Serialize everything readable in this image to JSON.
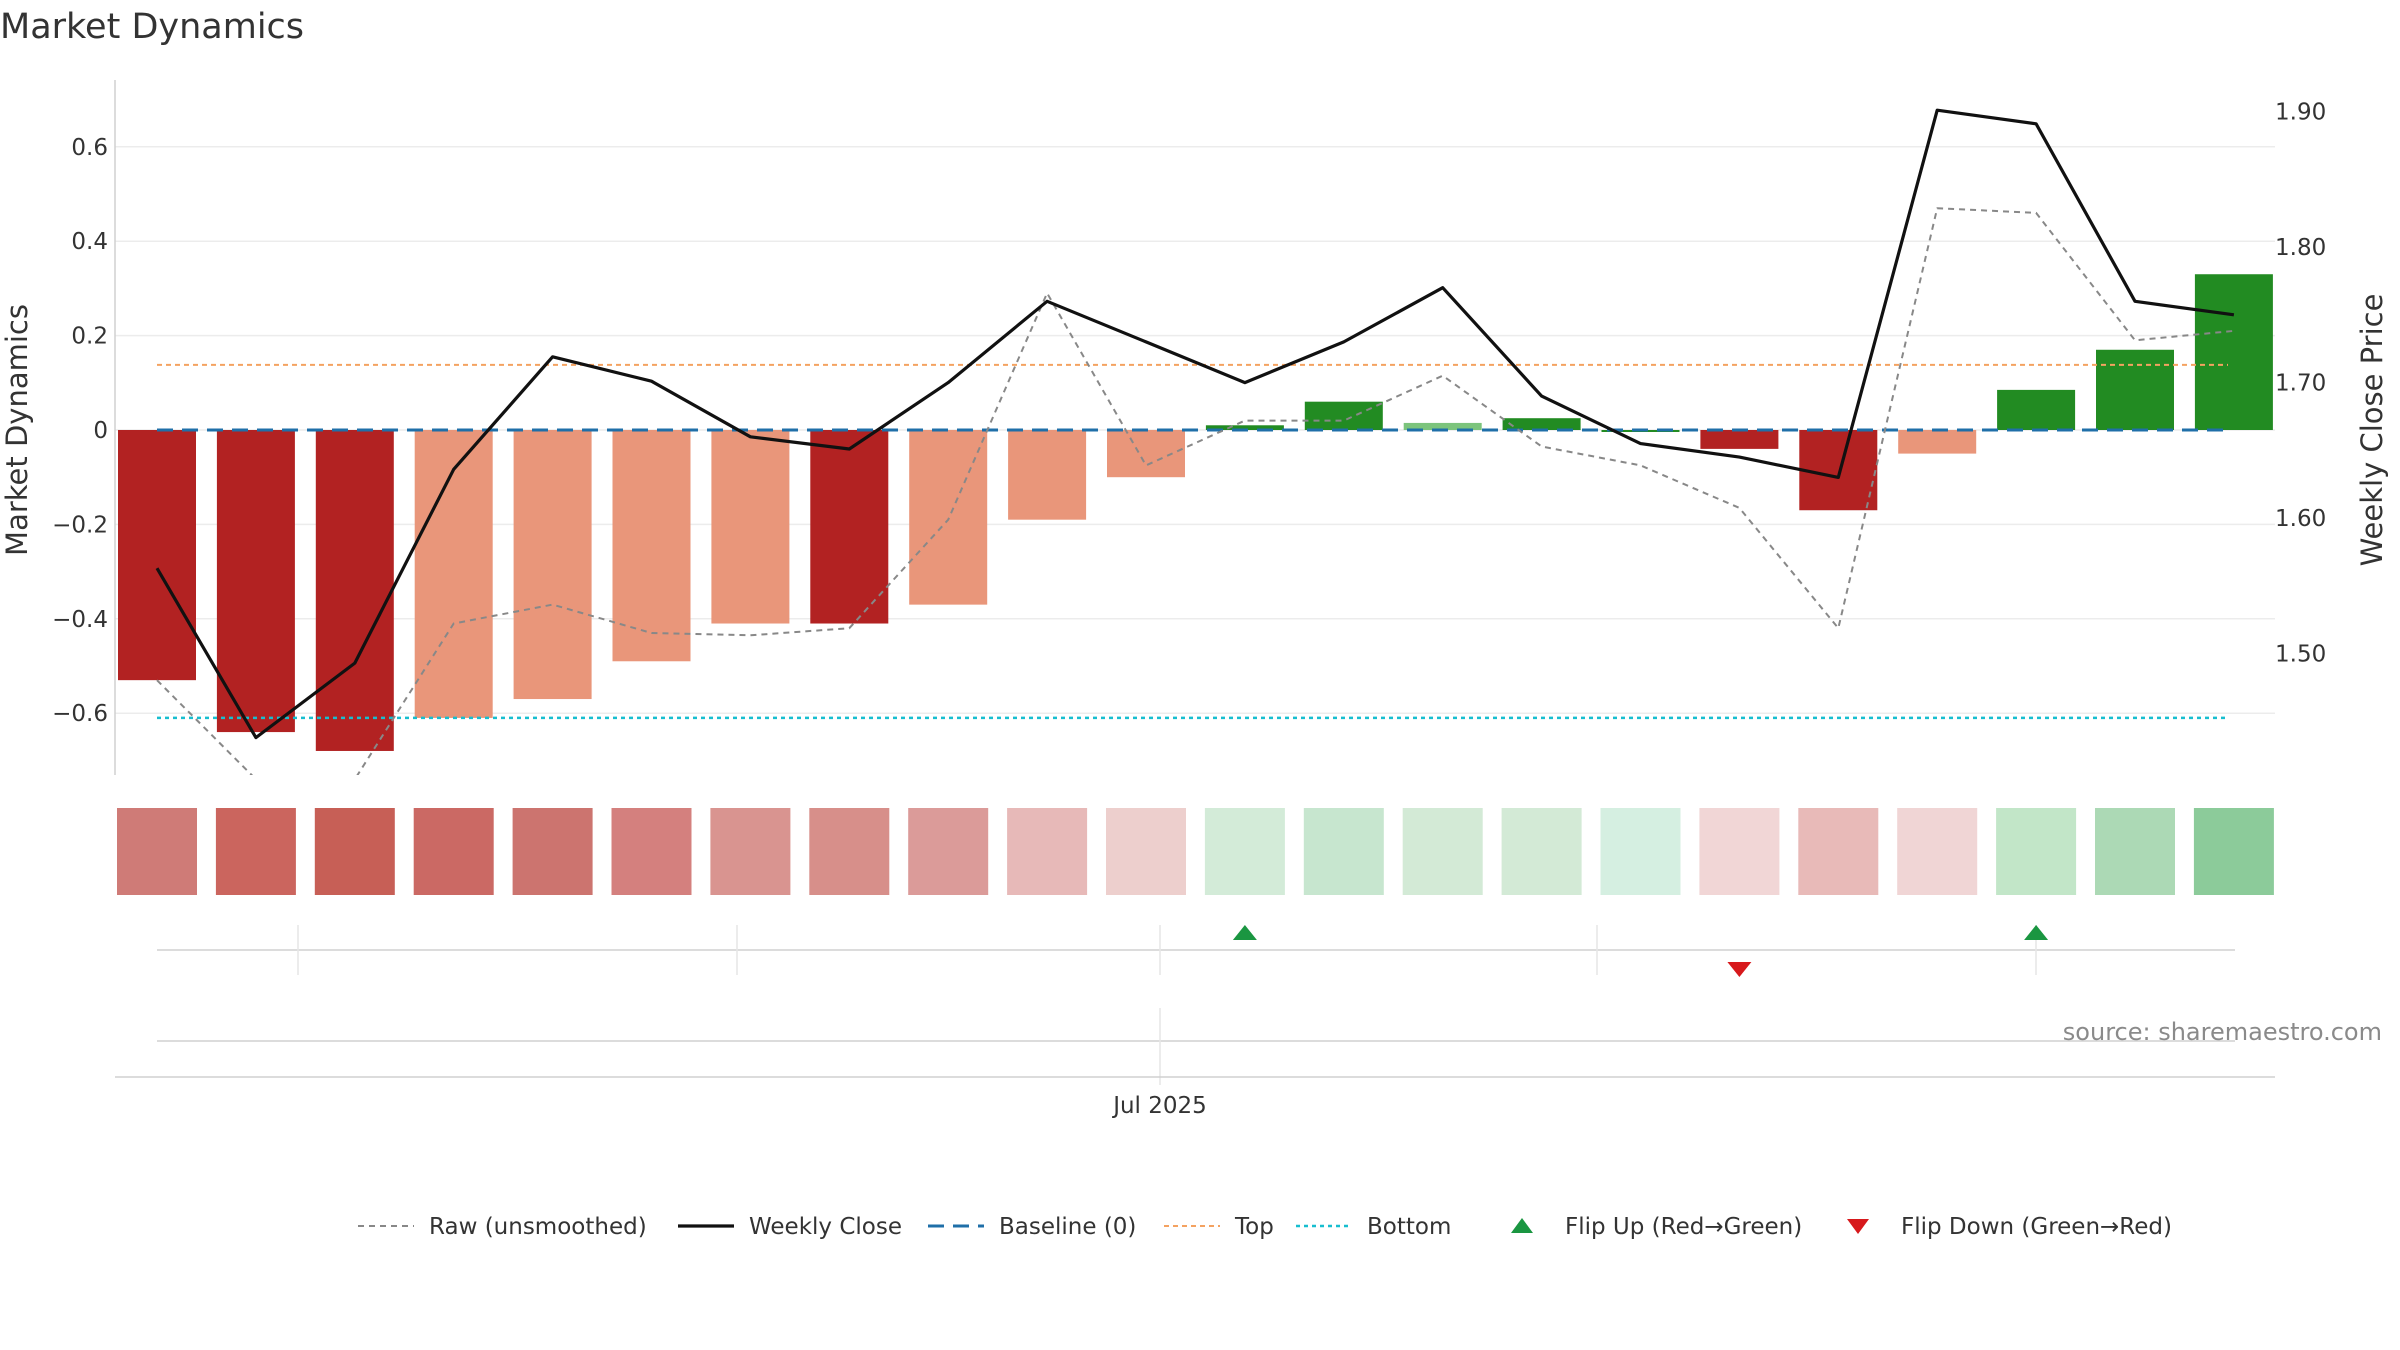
{
  "chart_data": {
    "type": "bar",
    "title": "Market Dynamics",
    "ylabel_left": "Market Dynamics",
    "ylabel_right": "Weekly Close Price",
    "ylim_left": [
      -0.735,
      0.735
    ],
    "ylim_right": [
      1.425,
      1.925
    ],
    "left_ticks": [
      0.6,
      0.4,
      0.2,
      0,
      -0.2,
      -0.4,
      -0.6
    ],
    "left_tick_labels": [
      "0.6",
      "0.4",
      "0.2",
      "0",
      "−0.2",
      "−0.4",
      "−0.6"
    ],
    "right_ticks": [
      1.9,
      1.8,
      1.7,
      1.6,
      1.5
    ],
    "right_tick_labels": [
      "1.90",
      "1.80",
      "1.70",
      "1.60",
      "1.50"
    ],
    "x_tick_label": "Jul 2025",
    "bars": {
      "values": [
        -0.53,
        -0.64,
        -0.68,
        -0.61,
        -0.57,
        -0.49,
        -0.41,
        -0.41,
        -0.37,
        -0.19,
        -0.1,
        0.01,
        0.06,
        0.015,
        0.025,
        0.0,
        -0.04,
        -0.17,
        -0.05,
        0.085,
        0.17,
        0.33
      ],
      "colors": [
        "#b22222",
        "#b22222",
        "#b22222",
        "#e9967a",
        "#e9967a",
        "#e9967a",
        "#e9967a",
        "#b22222",
        "#e9967a",
        "#e9967a",
        "#e9967a",
        "#228b22",
        "#228b22",
        "#7cc47c",
        "#228b22",
        "#228b22",
        "#b22222",
        "#b22222",
        "#e9967a",
        "#228b22",
        "#228b22",
        "#228b22"
      ]
    },
    "heat_strip": {
      "colors": [
        "#cf7b77",
        "#cb655e",
        "#c75f56",
        "#cb6964",
        "#cc746f",
        "#d4807e",
        "#d99490",
        "#d78f8a",
        "#db9b99",
        "#e7b9b8",
        "#edcfcd",
        "#d3ebd8",
        "#c7e6cf",
        "#d3ead6",
        "#d3ead6",
        "#d5efe1",
        "#f1d6d6",
        "#e8bab8",
        "#f0d5d5",
        "#c2e6c8",
        "#acd9b5",
        "#8ccb9a"
      ]
    },
    "series": [
      {
        "name": "Raw (unsmoothed)",
        "axis": "left",
        "color": "#888888",
        "style": "dashed",
        "values": [
          -0.53,
          -0.74,
          -0.74,
          -0.41,
          -0.37,
          -0.43,
          -0.435,
          -0.42,
          -0.19,
          0.29,
          -0.075,
          0.02,
          0.02,
          0.115,
          -0.035,
          -0.075,
          -0.165,
          -0.42,
          0.47,
          0.46,
          0.19,
          0.21
        ]
      },
      {
        "name": "Weekly Close",
        "axis": "right",
        "color": "#111111",
        "style": "solid",
        "values": [
          1.563,
          1.438,
          1.493,
          1.636,
          1.719,
          1.701,
          1.66,
          1.651,
          1.7,
          1.76,
          1.73,
          1.7,
          1.73,
          1.77,
          1.69,
          1.655,
          1.645,
          1.63,
          1.901,
          1.891,
          1.76,
          1.75
        ]
      }
    ],
    "reference_lines": {
      "baseline": {
        "name": "Baseline (0)",
        "value": 0,
        "color": "#1f6fa8"
      },
      "top": {
        "name": "Top",
        "value": 0.138,
        "color": "#f4a261"
      },
      "bottom": {
        "name": "Bottom",
        "value": -0.61,
        "color": "#17becf"
      }
    },
    "flip_markers": {
      "up": {
        "name": "Flip Up (Red→Green)",
        "color": "#1a9641",
        "indices": [
          11,
          19
        ]
      },
      "down": {
        "name": "Flip Down (Green→Red)",
        "color": "#d7191c",
        "indices": [
          16
        ]
      }
    },
    "legend": {
      "position": "bottom-center",
      "entries": [
        "Raw (unsmoothed)",
        "Weekly Close",
        "Baseline (0)",
        "Top",
        "Bottom",
        "Flip Up (Red→Green)",
        "Flip Down (Green→Red)"
      ]
    },
    "source": "source: sharemaestro.com",
    "grid": true
  }
}
